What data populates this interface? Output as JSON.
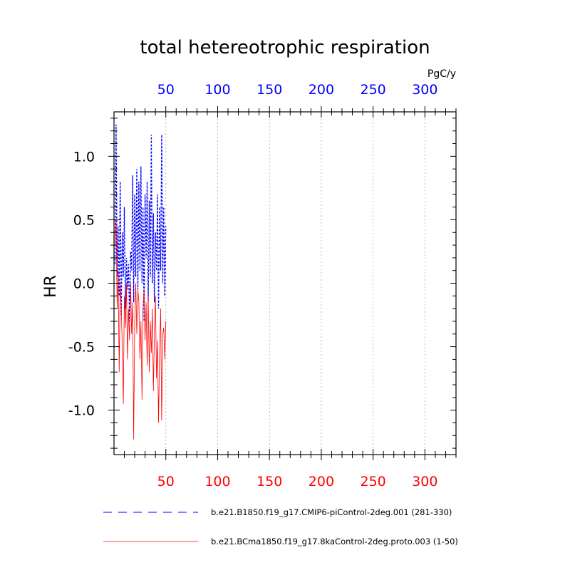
{
  "chart_data": {
    "type": "line",
    "title": "total hetereotrophic respiration",
    "units": "PgC/y",
    "ylabel": "HR",
    "xlabel": "",
    "xlim": [
      0,
      330
    ],
    "ylim": [
      -1.35,
      1.35
    ],
    "x_ticks": [
      50,
      100,
      150,
      200,
      250,
      300
    ],
    "x_tick_labels": [
      "50",
      "100",
      "150",
      "200",
      "250",
      "300"
    ],
    "y_ticks": [
      1.0,
      0.5,
      0.0,
      -0.5,
      -1.0
    ],
    "y_tick_labels": [
      "1.0",
      "0.5",
      "0.0",
      "-0.5",
      "-1.0"
    ],
    "top_axis_color": "#0000ff",
    "bottom_axis_color": "#ff0000",
    "series": [
      {
        "name": "b.e21.B1850.f19_g17.CMIP6-piControl-2deg.001 (281-330)",
        "color": "#0000ff",
        "style": "dashed",
        "x": [
          1,
          2,
          3,
          4,
          5,
          6,
          7,
          8,
          9,
          10,
          11,
          12,
          13,
          14,
          15,
          16,
          17,
          18,
          19,
          20,
          21,
          22,
          23,
          24,
          25,
          26,
          27,
          28,
          29,
          30,
          31,
          32,
          33,
          34,
          35,
          36,
          37,
          38,
          39,
          40,
          41,
          42,
          43,
          44,
          45,
          46,
          47,
          48,
          49,
          50
        ],
        "values": [
          0.15,
          1.25,
          0.05,
          0.45,
          -0.1,
          0.8,
          -0.25,
          0.4,
          0.05,
          0.6,
          -0.2,
          0.2,
          -0.05,
          0.15,
          -0.3,
          0.25,
          0.1,
          0.85,
          -0.15,
          0.7,
          0.05,
          0.9,
          -0.05,
          0.8,
          0.1,
          0.92,
          0.0,
          0.6,
          -0.3,
          0.7,
          0.2,
          0.8,
          -0.15,
          0.65,
          0.05,
          1.17,
          0.0,
          0.55,
          -0.15,
          0.4,
          0.1,
          0.7,
          -0.2,
          0.6,
          0.1,
          1.17,
          0.0,
          0.6,
          -0.1,
          0.45
        ]
      },
      {
        "name": "b.e21.BCma1850.f19_g17.8kaControl-2deg.proto.003 (1-50)",
        "color": "#ff0000",
        "style": "solid",
        "x": [
          1,
          2,
          3,
          4,
          5,
          6,
          7,
          8,
          9,
          10,
          11,
          12,
          13,
          14,
          15,
          16,
          17,
          18,
          19,
          20,
          21,
          22,
          23,
          24,
          25,
          26,
          27,
          28,
          29,
          30,
          31,
          32,
          33,
          34,
          35,
          36,
          37,
          38,
          39,
          40,
          41,
          42,
          43,
          44,
          45,
          46,
          47,
          48,
          49,
          50
        ],
        "values": [
          0.3,
          0.5,
          -0.2,
          0.1,
          -0.7,
          0.0,
          -0.2,
          -0.5,
          -0.95,
          -0.1,
          -0.35,
          0.0,
          -0.6,
          -0.2,
          -0.45,
          0.0,
          -0.4,
          -0.15,
          -1.23,
          -0.3,
          0.0,
          -0.4,
          -0.05,
          -0.15,
          -0.6,
          -0.3,
          -0.92,
          -0.2,
          -0.05,
          -0.45,
          -0.15,
          -0.65,
          -0.1,
          -0.7,
          -0.3,
          -0.55,
          -0.2,
          -0.85,
          -0.4,
          -0.1,
          -0.75,
          -0.45,
          -1.1,
          -0.55,
          -0.2,
          -1.08,
          -0.4,
          -0.35,
          -0.6,
          -0.3
        ]
      }
    ],
    "legend": [
      {
        "label": "b.e21.B1850.f19_g17.CMIP6-piControl-2deg.001 (281-330)",
        "color": "#0000ff",
        "style": "dashed"
      },
      {
        "label": "b.e21.BCma1850.f19_g17.8kaControl-2deg.proto.003 (1-50)",
        "color": "#ff0000",
        "style": "solid"
      }
    ],
    "grid": "vertical dotted gray at x ticks",
    "legend_position": "bottom"
  }
}
